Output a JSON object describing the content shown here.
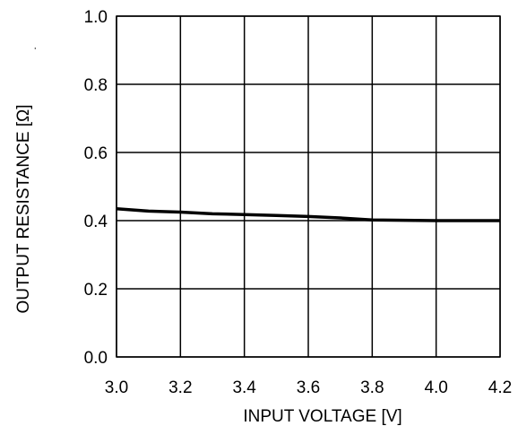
{
  "chart_data": {
    "type": "line",
    "xlabel": "INPUT VOLTAGE [V]",
    "ylabel": "OUTPUT RESISTANCE [Ω]",
    "ylabel_suffix": ".",
    "xlim": [
      3.0,
      4.2
    ],
    "ylim": [
      0.0,
      1.0
    ],
    "x_ticks": [
      "3.0",
      "3.2",
      "3.4",
      "3.6",
      "3.8",
      "4.0",
      "4.2"
    ],
    "y_ticks": [
      "0.0",
      "0.2",
      "0.4",
      "0.6",
      "0.8",
      "1.0"
    ],
    "grid": true,
    "series": [
      {
        "x": [
          3.0,
          3.1,
          3.2,
          3.3,
          3.4,
          3.5,
          3.6,
          3.7,
          3.8,
          3.9,
          4.0,
          4.1,
          4.2
        ],
        "y": [
          0.435,
          0.428,
          0.425,
          0.42,
          0.418,
          0.415,
          0.412,
          0.408,
          0.402,
          0.401,
          0.4,
          0.4,
          0.4
        ]
      }
    ]
  }
}
